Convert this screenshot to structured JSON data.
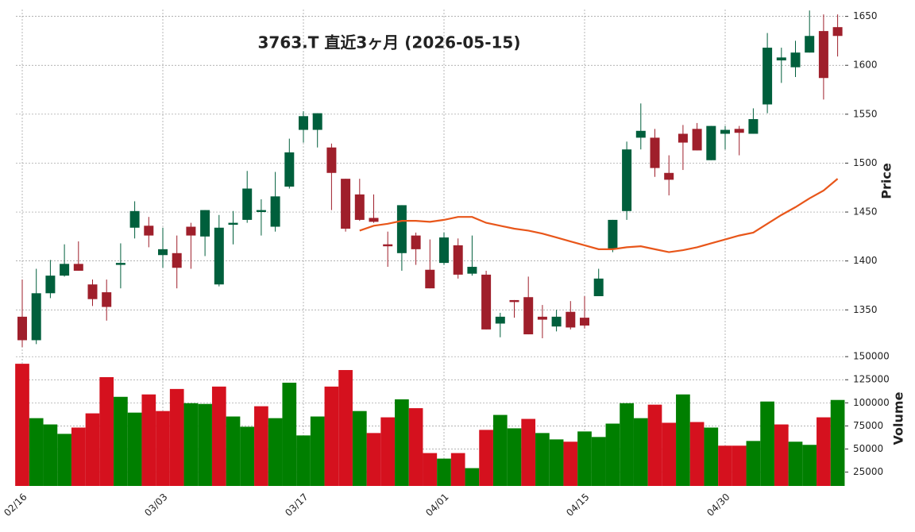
{
  "chart_data": {
    "type": "candlestick",
    "title": "3763.T 直近3ヶ月 (2026-05-15)",
    "categories": [
      "02/16",
      null,
      null,
      null,
      null,
      null,
      null,
      null,
      null,
      null,
      "03/03",
      null,
      null,
      null,
      null,
      null,
      null,
      null,
      null,
      null,
      "03/17",
      null,
      null,
      null,
      null,
      null,
      null,
      null,
      null,
      null,
      "04/01",
      null,
      null,
      null,
      null,
      null,
      null,
      null,
      null,
      null,
      "04/15",
      null,
      null,
      null,
      null,
      null,
      null,
      null,
      null,
      null,
      "04/30",
      null,
      null,
      null,
      null,
      null,
      null,
      null,
      null
    ],
    "open": [
      1343,
      1319,
      1367,
      1385,
      1397,
      1376,
      1368,
      1396,
      1434,
      1436,
      1406,
      1408,
      1435,
      1425,
      1376,
      1437,
      1442,
      1450,
      1435,
      1476,
      1534,
      1534,
      1516,
      1484,
      1468,
      1444,
      1417,
      1408,
      1426,
      1391,
      1398,
      1416,
      1387,
      1386,
      1336,
      1360,
      1363,
      1343,
      1333,
      1348,
      1342,
      1364,
      1412,
      1451,
      1526,
      1526,
      1490,
      1530,
      1535,
      1503,
      1530,
      1535,
      1530,
      1560,
      1605,
      1598,
      1613,
      1635,
      1639
    ],
    "high": [
      1381,
      1392,
      1401,
      1417,
      1420,
      1381,
      1381,
      1418,
      1461,
      1445,
      1434,
      1426,
      1439,
      1452,
      1447,
      1451,
      1492,
      1463,
      1491,
      1525,
      1553,
      1551,
      1520,
      1484,
      1484,
      1468,
      1430,
      1457,
      1429,
      1422,
      1429,
      1423,
      1426,
      1390,
      1347,
      1360,
      1384,
      1355,
      1350,
      1359,
      1364,
      1392,
      1442,
      1522,
      1561,
      1535,
      1508,
      1539,
      1541,
      1538,
      1538,
      1538,
      1556,
      1633,
      1618,
      1625,
      1656,
      1652,
      1652
    ],
    "low": [
      1312,
      1315,
      1362,
      1384,
      1390,
      1354,
      1339,
      1372,
      1423,
      1414,
      1393,
      1372,
      1392,
      1405,
      1374,
      1417,
      1439,
      1426,
      1430,
      1474,
      1521,
      1516,
      1452,
      1430,
      1441,
      1439,
      1394,
      1390,
      1396,
      1372,
      1396,
      1382,
      1385,
      1330,
      1322,
      1342,
      1325,
      1321,
      1328,
      1330,
      1331,
      1364,
      1409,
      1442,
      1514,
      1486,
      1467,
      1493,
      1513,
      1503,
      1514,
      1508,
      1530,
      1551,
      1582,
      1588,
      1613,
      1565,
      1609
    ],
    "close": [
      1319,
      1367,
      1385,
      1397,
      1390,
      1361,
      1353,
      1398,
      1451,
      1426,
      1412,
      1393,
      1426,
      1452,
      1434,
      1439,
      1474,
      1452,
      1466,
      1511,
      1548,
      1551,
      1490,
      1433,
      1442,
      1440,
      1415,
      1457,
      1412,
      1372,
      1424,
      1386,
      1394,
      1330,
      1343,
      1358,
      1325,
      1340,
      1343,
      1332,
      1334,
      1382,
      1442,
      1514,
      1533,
      1495,
      1483,
      1521,
      1513,
      1538,
      1534,
      1531,
      1545,
      1618,
      1608,
      1613,
      1630,
      1587,
      1630
    ],
    "up_color": "#005f3c",
    "down_color": "#9f1f2b",
    "ylabel": "Price",
    "ylim": [
      1308,
      1657
    ],
    "yticks": [
      1350,
      1400,
      1450,
      1500,
      1550,
      1600,
      1650
    ],
    "grid": true,
    "ma": {
      "color": "#e8561a",
      "values": [
        null,
        null,
        null,
        null,
        null,
        null,
        null,
        null,
        null,
        null,
        null,
        null,
        null,
        null,
        null,
        null,
        null,
        null,
        null,
        null,
        null,
        null,
        null,
        null,
        1431,
        1436,
        1438,
        1441,
        1441,
        1440,
        1442,
        1445,
        1445,
        1439,
        1436,
        1433,
        1431,
        1428,
        1424,
        1420,
        1416,
        1412,
        1412,
        1414,
        1415,
        1412,
        1409,
        1411,
        1414,
        1418,
        1422,
        1426,
        1429,
        1438,
        1447,
        1455,
        1464,
        1472,
        1484
      ]
    },
    "volume": {
      "label": "Volume",
      "values": [
        142300,
        83400,
        76600,
        66400,
        73200,
        88600,
        127800,
        106500,
        89400,
        109100,
        91100,
        115000,
        99600,
        98800,
        117600,
        85200,
        74100,
        96300,
        83400,
        121800,
        64700,
        85200,
        117600,
        135500,
        91100,
        67300,
        84300,
        103800,
        94200,
        45600,
        39600,
        45600,
        29300,
        70700,
        86900,
        72400,
        82600,
        67300,
        60400,
        57900,
        69000,
        63000,
        77500,
        99600,
        83400,
        98000,
        78400,
        109100,
        79200,
        73200,
        53600,
        53600,
        58700,
        101400,
        76600,
        57900,
        54500,
        84300,
        103100
      ],
      "up_color": "#007f00",
      "down_color": "#d5111e",
      "ylim": [
        10000,
        151000
      ],
      "yticks": [
        25000,
        50000,
        75000,
        100000,
        125000,
        150000
      ]
    }
  }
}
